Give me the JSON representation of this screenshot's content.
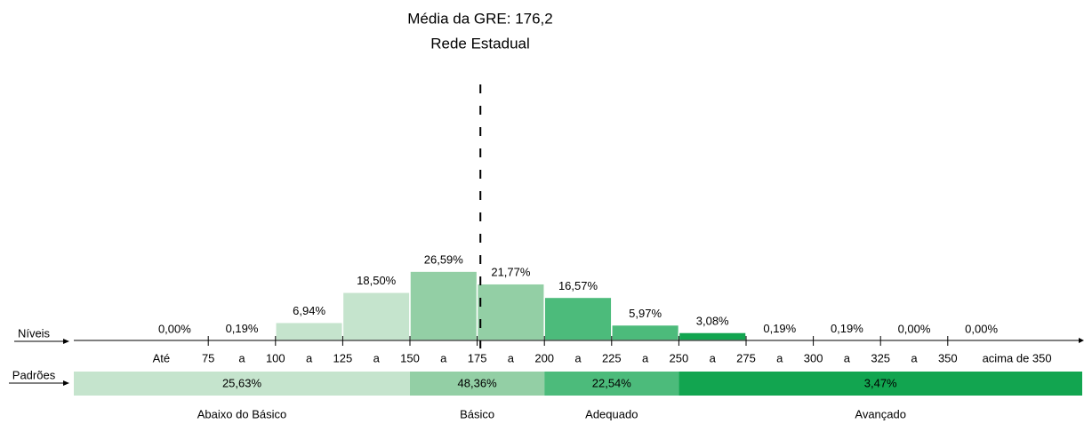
{
  "chart_data": {
    "type": "histogram",
    "title": "Média da GRE: 176,2",
    "subtitle": "Rede Estadual",
    "mean": 176.2,
    "x_axis_label": "Níveis",
    "xlim": [
      25,
      400
    ],
    "xticks": [
      75,
      100,
      125,
      150,
      175,
      200,
      225,
      250,
      275,
      300,
      325,
      350
    ],
    "bin_labels": [
      "Até",
      "a",
      "a",
      "a",
      "a",
      "a",
      "a",
      "a",
      "a",
      "a",
      "a",
      "a",
      "acima de 350"
    ],
    "values": [
      0.0,
      0.19,
      6.94,
      18.5,
      26.59,
      21.77,
      16.57,
      5.97,
      3.08,
      0.19,
      0.19,
      0.0,
      0.0
    ],
    "value_labels": [
      "0,00%",
      "0,19%",
      "6,94%",
      "18,50%",
      "26,59%",
      "21,77%",
      "16,57%",
      "5,97%",
      "3,08%",
      "0,19%",
      "0,19%",
      "0,00%",
      "0,00%"
    ],
    "colors": [
      "#c5e4cd",
      "#c5e4cd",
      "#c5e4cd",
      "#c5e4cd",
      "#93cfa5",
      "#93cfa5",
      "#4cbb7b",
      "#4cbb7b",
      "#12a550",
      "#12a550",
      "#12a550",
      "#12a550",
      "#12a550"
    ],
    "standards_label": "Padrões",
    "standards_boundaries": [
      150,
      200,
      250
    ],
    "standards": [
      {
        "name": "Abaixo do Básico",
        "value": 25.63,
        "value_label": "25,63%",
        "color": "#c5e4cd"
      },
      {
        "name": "Básico",
        "value": 48.36,
        "value_label": "48,36%",
        "color": "#93cfa5"
      },
      {
        "name": "Adequado",
        "value": 22.54,
        "value_label": "22,54%",
        "color": "#4cbb7b"
      },
      {
        "name": "Avançado",
        "value": 3.47,
        "value_label": "3,47%",
        "color": "#12a550"
      }
    ]
  }
}
